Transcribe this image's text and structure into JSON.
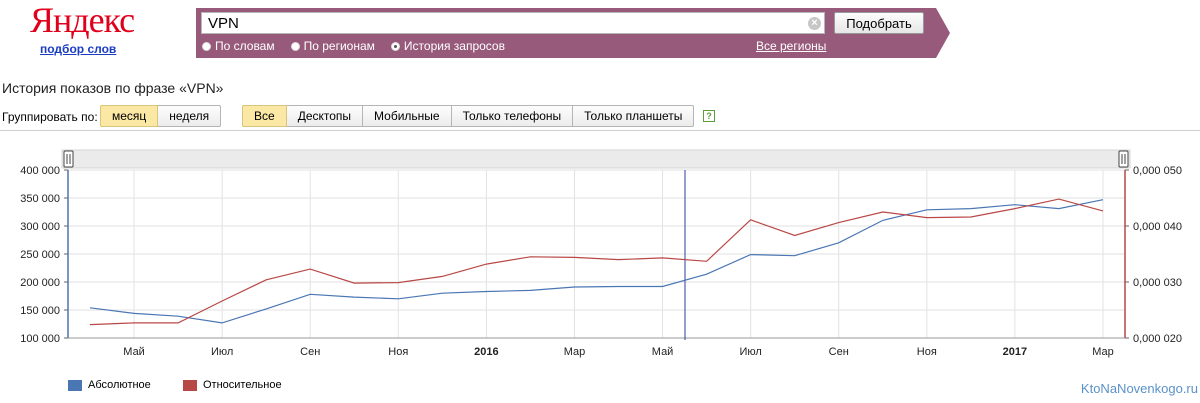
{
  "logo": {
    "text": "Яндекс",
    "subtitle": "подбор слов"
  },
  "search": {
    "value": "VPN",
    "button_label": "Подобрать"
  },
  "modes": [
    {
      "label": "По словам",
      "selected": false
    },
    {
      "label": "По регионам",
      "selected": false
    },
    {
      "label": "История запросов",
      "selected": true
    }
  ],
  "regions_link": "Все регионы",
  "page_title": "История показов по фразе «VPN»",
  "grouping": {
    "label": "Группировать по:",
    "options": [
      "месяц",
      "неделя"
    ],
    "active": "месяц"
  },
  "devices": {
    "options": [
      "Все",
      "Десктопы",
      "Мобильные",
      "Только телефоны",
      "Только планшеты"
    ],
    "active": "Все"
  },
  "help_icon": "?",
  "watermark": "KtoNaNovenkogo.ru",
  "colors": {
    "absolute": "#4a76b4",
    "relative": "#b84846",
    "accent_bar": "#975a7b"
  },
  "chart_data": {
    "type": "line",
    "x": [
      "2015-04",
      "2015-05",
      "2015-06",
      "2015-07",
      "2015-08",
      "2015-09",
      "2015-10",
      "2015-11",
      "2015-12",
      "2016-01",
      "2016-02",
      "2016-03",
      "2016-04",
      "2016-05",
      "2016-06",
      "2016-07",
      "2016-08",
      "2016-09",
      "2016-10",
      "2016-11",
      "2016-12",
      "2017-01",
      "2017-02",
      "2017-03"
    ],
    "x_tick_labels": [
      "Май",
      "Июл",
      "Сен",
      "Ноя",
      "2016",
      "Мар",
      "Май",
      "Июл",
      "Сен",
      "Ноя",
      "2017",
      "Мар"
    ],
    "x_tick_dates": [
      "2015-05",
      "2015-07",
      "2015-09",
      "2015-11",
      "2016-01",
      "2016-03",
      "2016-05",
      "2016-07",
      "2016-09",
      "2016-11",
      "2017-01",
      "2017-03"
    ],
    "y_left": {
      "ticks": [
        "400 000",
        "350 000",
        "300 000",
        "250 000",
        "200 000",
        "150 000",
        "100 000"
      ],
      "range": [
        100000,
        400000
      ]
    },
    "y_right": {
      "ticks": [
        "0,000 050",
        "0,000 040",
        "0,000 030",
        "0,000 020"
      ],
      "range": [
        2e-05,
        5e-05
      ]
    },
    "series": [
      {
        "name": "Абсолютное",
        "axis": "left",
        "values": [
          154000,
          144000,
          139000,
          127000,
          152000,
          178000,
          173000,
          170000,
          180000,
          183000,
          185000,
          191000,
          192000,
          192000,
          214000,
          249000,
          247000,
          270000,
          310000,
          329000,
          331000,
          338000,
          331000,
          347000
        ]
      },
      {
        "name": "Относительное",
        "axis": "right",
        "values": [
          2.24e-05,
          2.27e-05,
          2.27e-05,
          2.66e-05,
          3.04e-05,
          3.23e-05,
          2.98e-05,
          2.99e-05,
          3.1e-05,
          3.32e-05,
          3.45e-05,
          3.44e-05,
          3.4e-05,
          3.43e-05,
          3.37e-05,
          4.11e-05,
          3.83e-05,
          4.06e-05,
          4.25e-05,
          4.15e-05,
          4.16e-05,
          4.31e-05,
          4.48e-05,
          4.27e-05
        ]
      }
    ],
    "legend_position": "bottom-left",
    "grid": true
  }
}
